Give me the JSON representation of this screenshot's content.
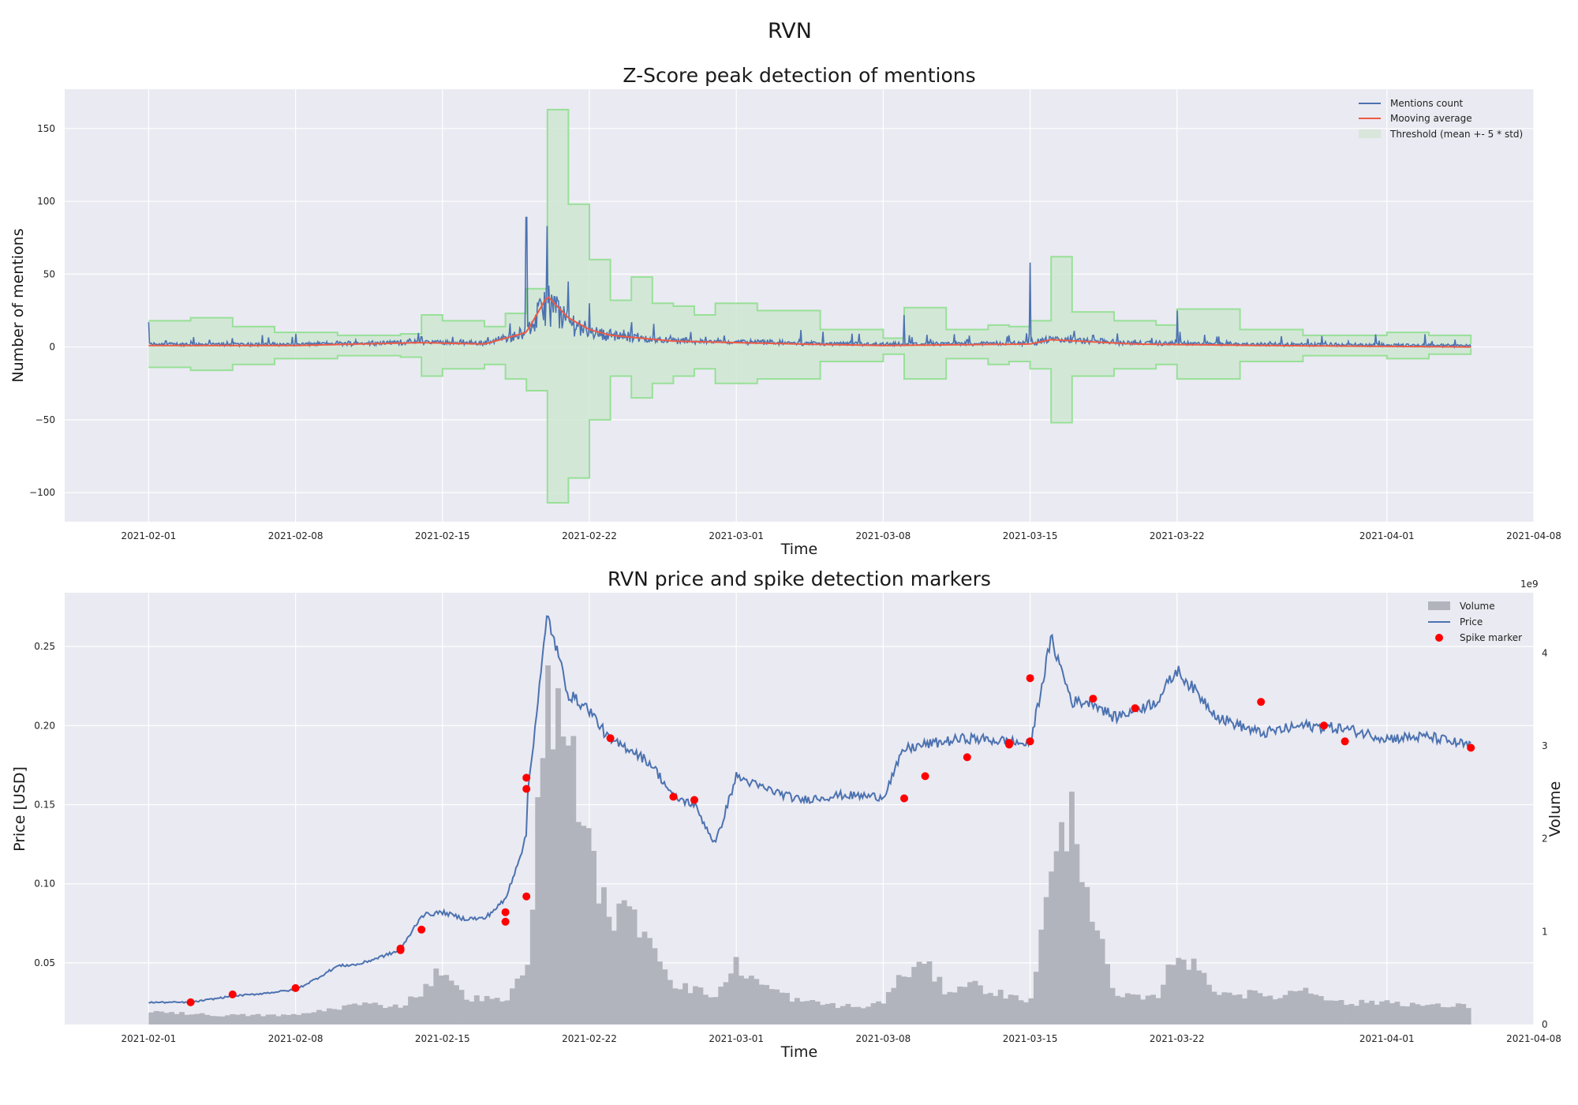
{
  "figure": {
    "title": "RVN"
  },
  "chart_data": [
    {
      "type": "line",
      "title": "Z-Score peak detection of mentions",
      "xlabel": "Time",
      "ylabel": "Number of mentions",
      "xlim": [
        "2021-01-28",
        "2021-04-08"
      ],
      "ylim": [
        -120,
        177
      ],
      "xticks": [
        "2021-02-01",
        "2021-02-08",
        "2021-02-15",
        "2021-02-22",
        "2021-03-01",
        "2021-03-08",
        "2021-03-15",
        "2021-03-22",
        "2021-04-01",
        "2021-04-08"
      ],
      "yticks": [
        -100,
        -50,
        0,
        50,
        100,
        150
      ],
      "grid": true,
      "legend_position": "top-right",
      "legend": [
        "Mentions count",
        "Mooving average",
        "Threshold (mean +- 5 * std)"
      ],
      "colors": {
        "mentions": "#4c72b0",
        "average": "#ee5a45",
        "threshold_fill": "#cfe6d2",
        "threshold_edge": "#98e098"
      },
      "series": [
        {
          "name": "Mentions count",
          "x": [
            "2021-02-01",
            "2021-02-02",
            "2021-02-03",
            "2021-02-04",
            "2021-02-05",
            "2021-02-08",
            "2021-02-10",
            "2021-02-13",
            "2021-02-14",
            "2021-02-16",
            "2021-02-18",
            "2021-02-19",
            "2021-02-20",
            "2021-02-21",
            "2021-02-22",
            "2021-02-23",
            "2021-02-24",
            "2021-02-26",
            "2021-03-01",
            "2021-03-04",
            "2021-03-08",
            "2021-03-09",
            "2021-03-12",
            "2021-03-14",
            "2021-03-15",
            "2021-03-16",
            "2021-03-18",
            "2021-03-20",
            "2021-03-22",
            "2021-03-26",
            "2021-03-30",
            "2021-04-02",
            "2021-04-04",
            "2021-04-05"
          ],
          "values": [
            17,
            3,
            4,
            2,
            6,
            9,
            4,
            5,
            7,
            5,
            7,
            89,
            83,
            45,
            30,
            12,
            17,
            6,
            4,
            5,
            3,
            22,
            5,
            8,
            58,
            6,
            8,
            5,
            25,
            3,
            1,
            2,
            1,
            0
          ]
        },
        {
          "name": "Mooving average",
          "x": [
            "2021-02-01",
            "2021-02-08",
            "2021-02-14",
            "2021-02-17",
            "2021-02-19",
            "2021-02-20",
            "2021-02-21",
            "2021-02-22",
            "2021-02-23",
            "2021-02-26",
            "2021-03-01",
            "2021-03-04",
            "2021-03-08",
            "2021-03-15",
            "2021-03-16",
            "2021-03-20",
            "2021-03-26",
            "2021-04-05"
          ],
          "values": [
            1,
            1,
            3,
            2,
            10,
            35,
            20,
            12,
            8,
            4,
            3,
            2,
            1,
            2,
            5,
            2,
            1,
            0
          ]
        },
        {
          "name": "Threshold (mean +- 5 * std)",
          "x": [
            "2021-02-01",
            "2021-02-03",
            "2021-02-05",
            "2021-02-07",
            "2021-02-10",
            "2021-02-13",
            "2021-02-14",
            "2021-02-15",
            "2021-02-17",
            "2021-02-18",
            "2021-02-19",
            "2021-02-20",
            "2021-02-21",
            "2021-02-22",
            "2021-02-23",
            "2021-02-24",
            "2021-02-25",
            "2021-02-26",
            "2021-02-27",
            "2021-02-28",
            "2021-03-02",
            "2021-03-05",
            "2021-03-08",
            "2021-03-09",
            "2021-03-11",
            "2021-03-13",
            "2021-03-14",
            "2021-03-15",
            "2021-03-16",
            "2021-03-17",
            "2021-03-19",
            "2021-03-21",
            "2021-03-22",
            "2021-03-25",
            "2021-03-28",
            "2021-04-01",
            "2021-04-03",
            "2021-04-05"
          ],
          "upper": [
            18,
            20,
            14,
            10,
            8,
            9,
            22,
            18,
            14,
            23,
            40,
            163,
            98,
            60,
            32,
            48,
            30,
            28,
            22,
            30,
            25,
            12,
            6,
            27,
            12,
            15,
            14,
            18,
            62,
            24,
            18,
            15,
            26,
            12,
            8,
            10,
            8,
            2
          ],
          "lower": [
            -14,
            -16,
            -12,
            -8,
            -6,
            -7,
            -20,
            -15,
            -12,
            -22,
            -30,
            -107,
            -90,
            -50,
            -20,
            -35,
            -25,
            -20,
            -15,
            -25,
            -22,
            -10,
            -5,
            -22,
            -8,
            -12,
            -10,
            -15,
            -52,
            -20,
            -15,
            -12,
            -22,
            -10,
            -6,
            -8,
            -5,
            -1
          ]
        }
      ]
    },
    {
      "type": "line",
      "title": "RVN price and spike detection markers",
      "xlabel": "Time",
      "ylabel": "Price [USD]",
      "y2label": "Volume",
      "y2_offset_text": "1e9",
      "xlim": [
        "2021-01-28",
        "2021-04-08"
      ],
      "ylim": [
        0.011,
        0.284
      ],
      "y2lim": [
        0,
        4.65
      ],
      "xticks": [
        "2021-02-01",
        "2021-02-08",
        "2021-02-15",
        "2021-02-22",
        "2021-03-01",
        "2021-03-08",
        "2021-03-15",
        "2021-03-22",
        "2021-04-01",
        "2021-04-08"
      ],
      "yticks": [
        0.05,
        0.1,
        0.15,
        0.2,
        0.25
      ],
      "y2ticks": [
        0,
        1,
        2,
        3,
        4
      ],
      "grid": true,
      "legend_position": "top-right",
      "legend": [
        "Volume",
        "Price",
        "Spike marker"
      ],
      "colors": {
        "price": "#4c72b0",
        "volume": "#b2b4bd",
        "marker": "#ff0000"
      },
      "series": [
        {
          "name": "Price",
          "x": [
            "2021-02-01",
            "2021-02-03",
            "2021-02-05",
            "2021-02-06",
            "2021-02-08",
            "2021-02-09",
            "2021-02-10",
            "2021-02-11",
            "2021-02-13",
            "2021-02-14",
            "2021-02-15",
            "2021-02-16",
            "2021-02-17",
            "2021-02-18",
            "2021-02-19",
            "2021-02-19",
            "2021-02-20",
            "2021-02-21",
            "2021-02-22",
            "2021-02-23",
            "2021-02-24",
            "2021-02-25",
            "2021-02-26",
            "2021-02-27",
            "2021-02-28",
            "2021-03-01",
            "2021-03-02",
            "2021-03-04",
            "2021-03-06",
            "2021-03-08",
            "2021-03-09",
            "2021-03-10",
            "2021-03-12",
            "2021-03-14",
            "2021-03-15",
            "2021-03-16",
            "2021-03-17",
            "2021-03-18",
            "2021-03-19",
            "2021-03-21",
            "2021-03-22",
            "2021-03-24",
            "2021-03-26",
            "2021-03-28",
            "2021-03-30",
            "2021-04-01",
            "2021-04-03",
            "2021-04-05"
          ],
          "values": [
            0.025,
            0.025,
            0.029,
            0.03,
            0.033,
            0.04,
            0.048,
            0.049,
            0.058,
            0.08,
            0.082,
            0.078,
            0.078,
            0.09,
            0.13,
            0.15,
            0.27,
            0.22,
            0.21,
            0.19,
            0.185,
            0.175,
            0.155,
            0.15,
            0.125,
            0.168,
            0.162,
            0.153,
            0.156,
            0.155,
            0.185,
            0.188,
            0.192,
            0.19,
            0.188,
            0.255,
            0.215,
            0.215,
            0.205,
            0.215,
            0.235,
            0.205,
            0.195,
            0.2,
            0.198,
            0.192,
            0.193,
            0.187
          ]
        },
        {
          "name": "Volume",
          "x": [
            "2021-02-01",
            "2021-02-04",
            "2021-02-08",
            "2021-02-11",
            "2021-02-13",
            "2021-02-14",
            "2021-02-15",
            "2021-02-16",
            "2021-02-18",
            "2021-02-19",
            "2021-02-20",
            "2021-02-21",
            "2021-02-22",
            "2021-02-23",
            "2021-02-24",
            "2021-02-25",
            "2021-02-26",
            "2021-02-28",
            "2021-03-01",
            "2021-03-02",
            "2021-03-04",
            "2021-03-07",
            "2021-03-08",
            "2021-03-09",
            "2021-03-10",
            "2021-03-11",
            "2021-03-12",
            "2021-03-14",
            "2021-03-15",
            "2021-03-16",
            "2021-03-17",
            "2021-03-18",
            "2021-03-19",
            "2021-03-21",
            "2021-03-22",
            "2021-03-24",
            "2021-03-27",
            "2021-03-28",
            "2021-03-30",
            "2021-04-01",
            "2021-04-03",
            "2021-04-05"
          ],
          "values": [
            0.15,
            0.1,
            0.1,
            0.22,
            0.2,
            0.35,
            0.62,
            0.3,
            0.25,
            0.6,
            3.5,
            3.2,
            1.8,
            1.15,
            1.2,
            0.9,
            0.45,
            0.3,
            0.65,
            0.45,
            0.25,
            0.18,
            0.25,
            0.55,
            0.65,
            0.35,
            0.45,
            0.3,
            0.25,
            1.6,
            2.3,
            1.2,
            0.3,
            0.28,
            0.8,
            0.35,
            0.3,
            0.4,
            0.22,
            0.25,
            0.2,
            0.2
          ]
        },
        {
          "name": "Spike marker",
          "x": [
            "2021-02-03",
            "2021-02-05",
            "2021-02-08",
            "2021-02-13",
            "2021-02-13",
            "2021-02-14",
            "2021-02-18",
            "2021-02-18",
            "2021-02-19",
            "2021-02-19",
            "2021-02-19",
            "2021-02-23",
            "2021-02-26",
            "2021-02-27",
            "2021-03-09",
            "2021-03-10",
            "2021-03-12",
            "2021-03-14",
            "2021-03-14",
            "2021-03-15",
            "2021-03-15",
            "2021-03-18",
            "2021-03-20",
            "2021-03-26",
            "2021-03-29",
            "2021-03-30",
            "2021-04-05"
          ],
          "values": [
            0.025,
            0.03,
            0.034,
            0.058,
            0.059,
            0.071,
            0.076,
            0.082,
            0.092,
            0.16,
            0.167,
            0.192,
            0.155,
            0.153,
            0.154,
            0.168,
            0.18,
            0.188,
            0.189,
            0.19,
            0.23,
            0.217,
            0.211,
            0.215,
            0.2,
            0.19,
            0.186
          ]
        }
      ]
    }
  ]
}
